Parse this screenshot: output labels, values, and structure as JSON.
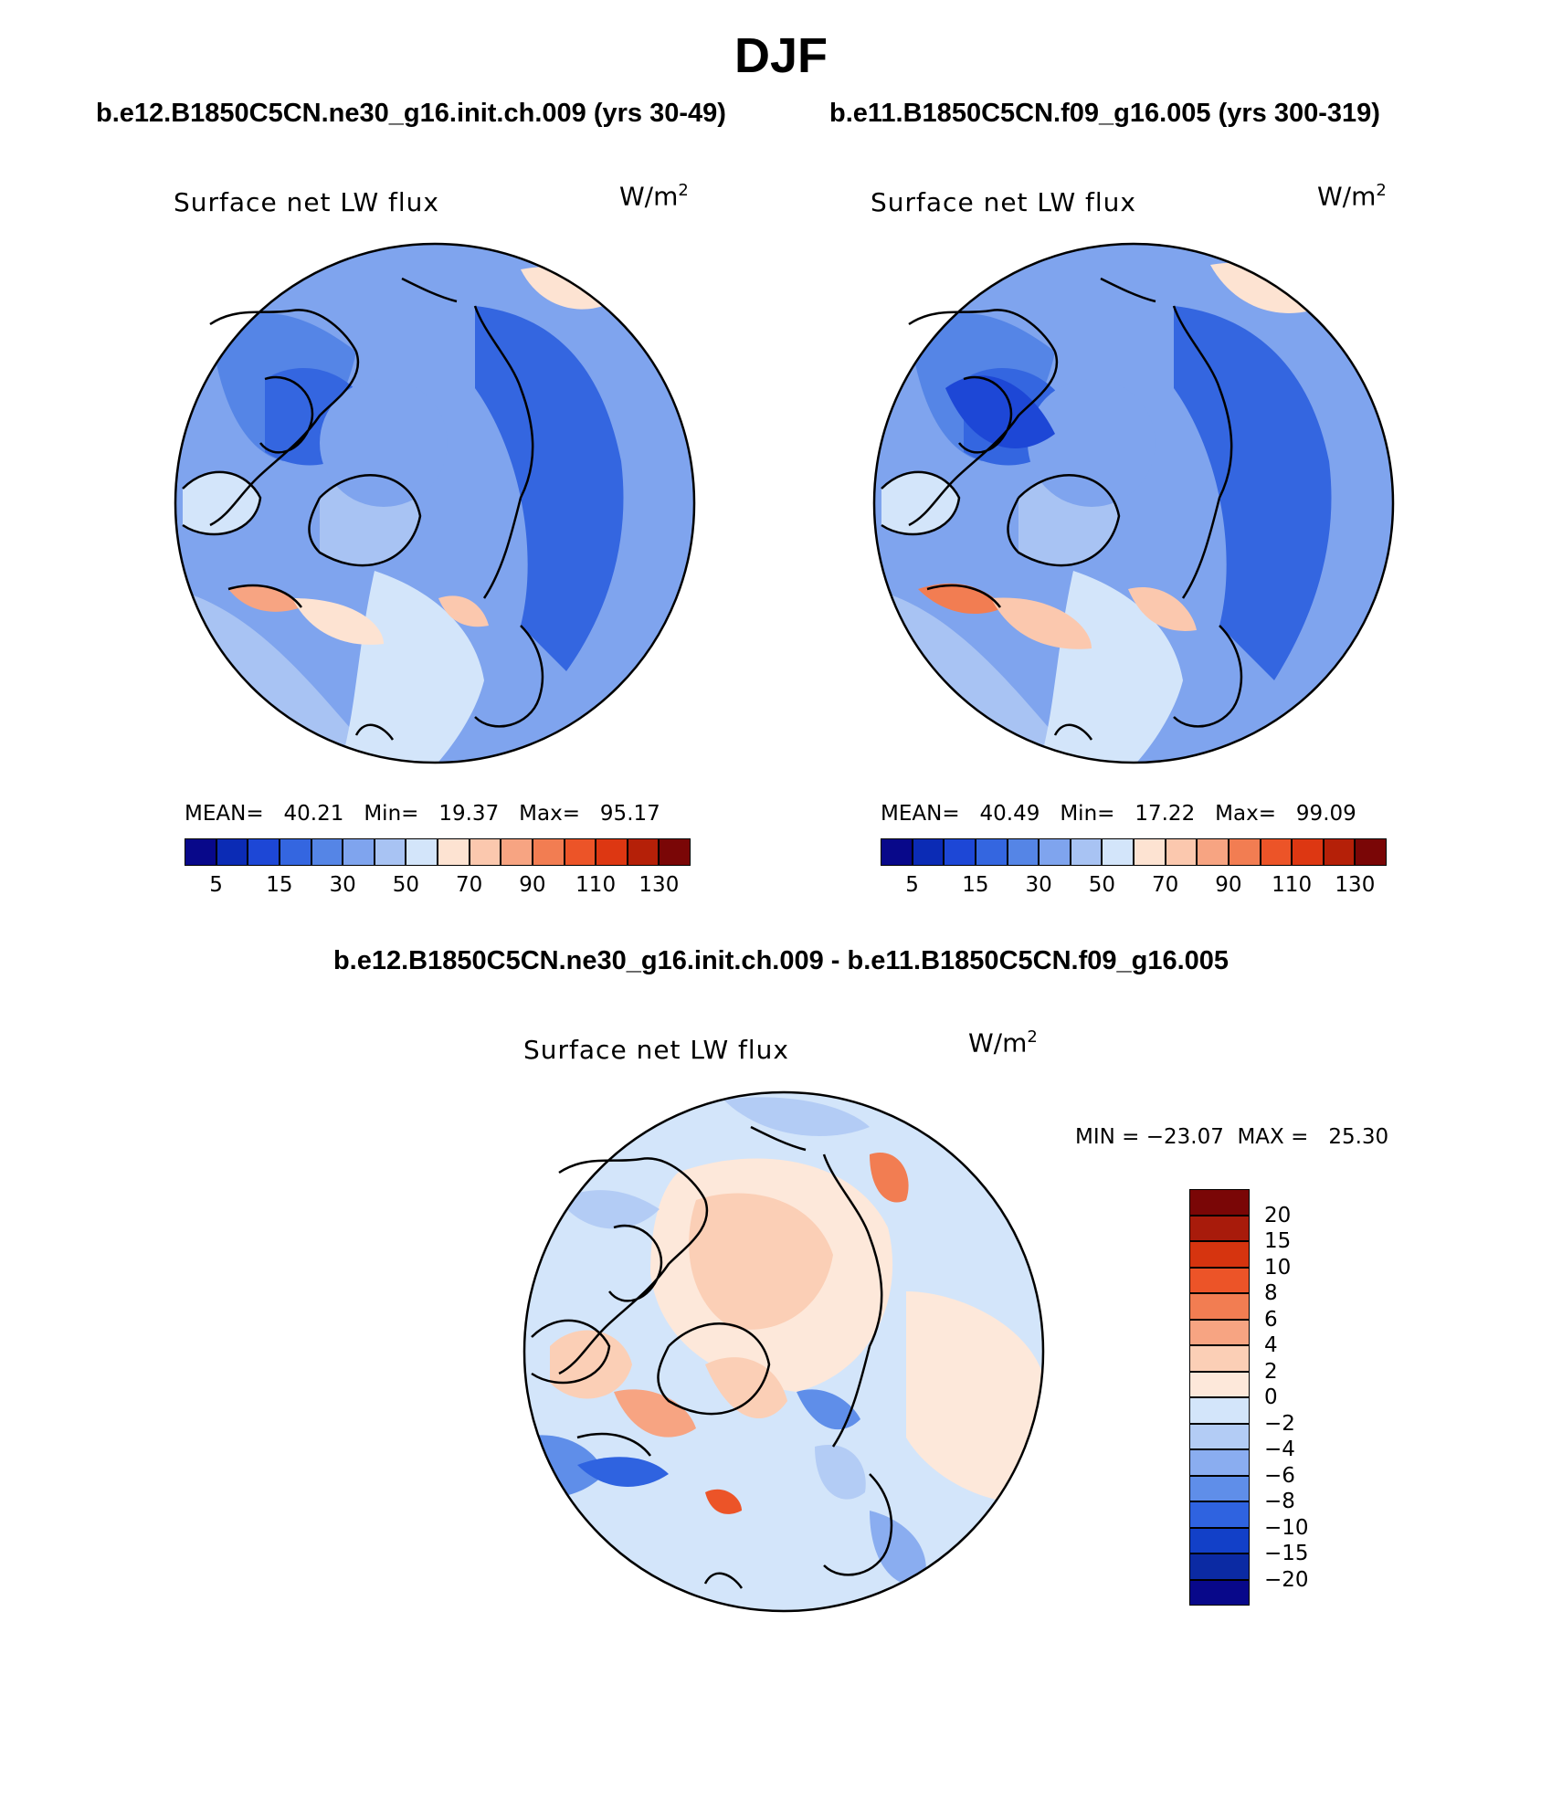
{
  "title": "DJF",
  "panels": [
    {
      "case_title": "b.e12.B1850C5CN.ne30_g16.init.ch.009 (yrs 30-49)",
      "variable": "Surface net LW flux",
      "units_base": "W/m",
      "units_exp": "2",
      "stats": {
        "mean_label": "MEAN=",
        "mean": "40.21",
        "min_label": "Min=",
        "min": "19.37",
        "max_label": "Max=",
        "max": "95.17"
      }
    },
    {
      "case_title": "b.e11.B1850C5CN.f09_g16.005 (yrs 300-319)",
      "variable": "Surface net LW flux",
      "units_base": "W/m",
      "units_exp": "2",
      "stats": {
        "mean_label": "MEAN=",
        "mean": "40.49",
        "min_label": "Min=",
        "min": "17.22",
        "max_label": "Max=",
        "max": "99.09"
      }
    }
  ],
  "diff_panel": {
    "title": "b.e12.B1850C5CN.ne30_g16.init.ch.009 - b.e11.B1850C5CN.f09_g16.005",
    "variable": "Surface net LW flux",
    "units_base": "W/m",
    "units_exp": "2",
    "minmax": "MIN = −23.07  MAX =   25.30"
  },
  "colorbar_abs": {
    "colors": [
      "#08088a",
      "#0b2bb5",
      "#1d47d6",
      "#3466e0",
      "#5585e6",
      "#7fa4ee",
      "#a8c3f3",
      "#d3e5fa",
      "#fde3d2",
      "#fbc8ae",
      "#f7a482",
      "#f27d52",
      "#ec5428",
      "#dd3712",
      "#b52008",
      "#7a0606"
    ],
    "tick_labels": [
      "5",
      "15",
      "30",
      "50",
      "70",
      "90",
      "110",
      "130"
    ]
  },
  "colorbar_diff": {
    "colors": [
      "#7a0606",
      "#a81b0b",
      "#d6340f",
      "#ec5428",
      "#f27d52",
      "#f7a482",
      "#fbcfb6",
      "#fde8da",
      "#d3e5fa",
      "#b3ccf5",
      "#8aadf0",
      "#5f8ee9",
      "#2f63e0",
      "#1240c8",
      "#0b2aa3",
      "#08088a"
    ],
    "tick_labels": [
      "20",
      "15",
      "10",
      "8",
      "6",
      "4",
      "2",
      "0",
      "−2",
      "−4",
      "−6",
      "−8",
      "−10",
      "−15",
      "−20"
    ]
  },
  "map_colors": {
    "mid_blue": "#5585e6",
    "light_blue": "#7fa4ee",
    "pale_blue": "#a8c3f3",
    "very_pale_blue": "#d3e5fa",
    "deep_blue": "#3466e0",
    "peach": "#fde3d2",
    "salmon": "#f7a482",
    "orange": "#f27d52"
  }
}
